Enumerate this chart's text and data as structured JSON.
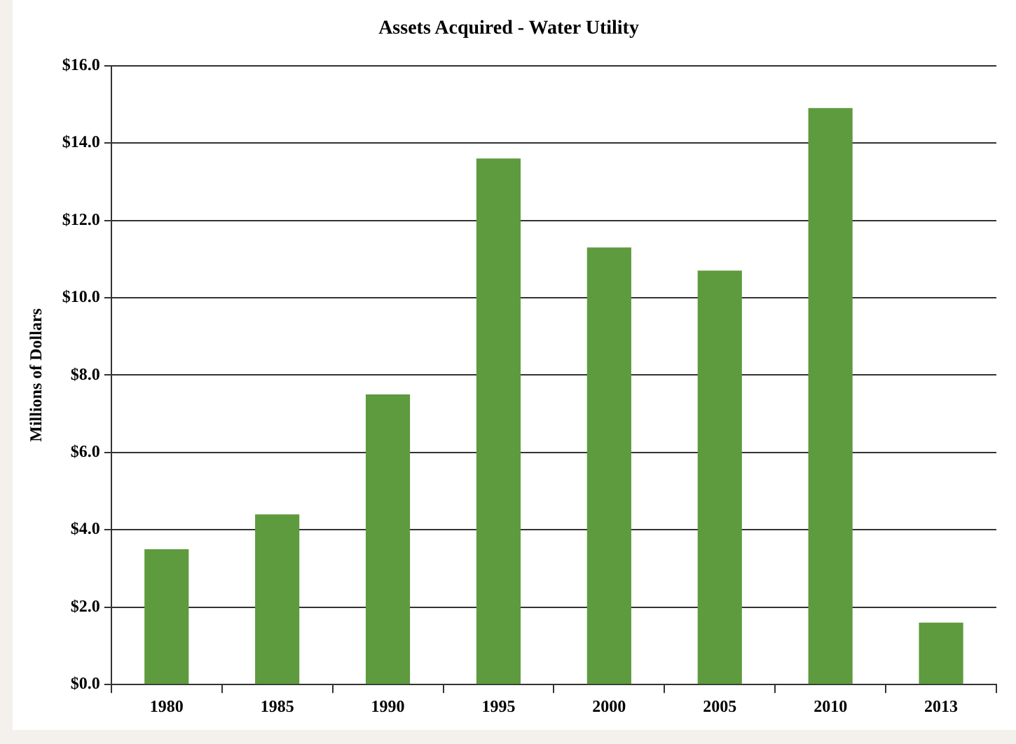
{
  "chart_data": {
    "type": "bar",
    "title": "Assets Acquired - Water Utility",
    "ylabel": "Millions of Dollars",
    "categories": [
      "1980",
      "1985",
      "1990",
      "1995",
      "2000",
      "2005",
      "2010",
      "2013"
    ],
    "values": [
      3.5,
      4.4,
      7.5,
      13.6,
      11.3,
      10.7,
      14.9,
      1.6
    ],
    "color": "#5e9a3e",
    "ylim": [
      0,
      16
    ],
    "yticks": [
      {
        "value": 0,
        "label": "$0.0"
      },
      {
        "value": 2,
        "label": "$2.0"
      },
      {
        "value": 4,
        "label": "$4.0"
      },
      {
        "value": 6,
        "label": "$6.0"
      },
      {
        "value": 8,
        "label": "$8.0"
      },
      {
        "value": 10,
        "label": "$10.0"
      },
      {
        "value": 12,
        "label": "$12.0"
      },
      {
        "value": 14,
        "label": "$14.0"
      },
      {
        "value": 16,
        "label": "$16.0"
      }
    ],
    "grid": "y"
  }
}
